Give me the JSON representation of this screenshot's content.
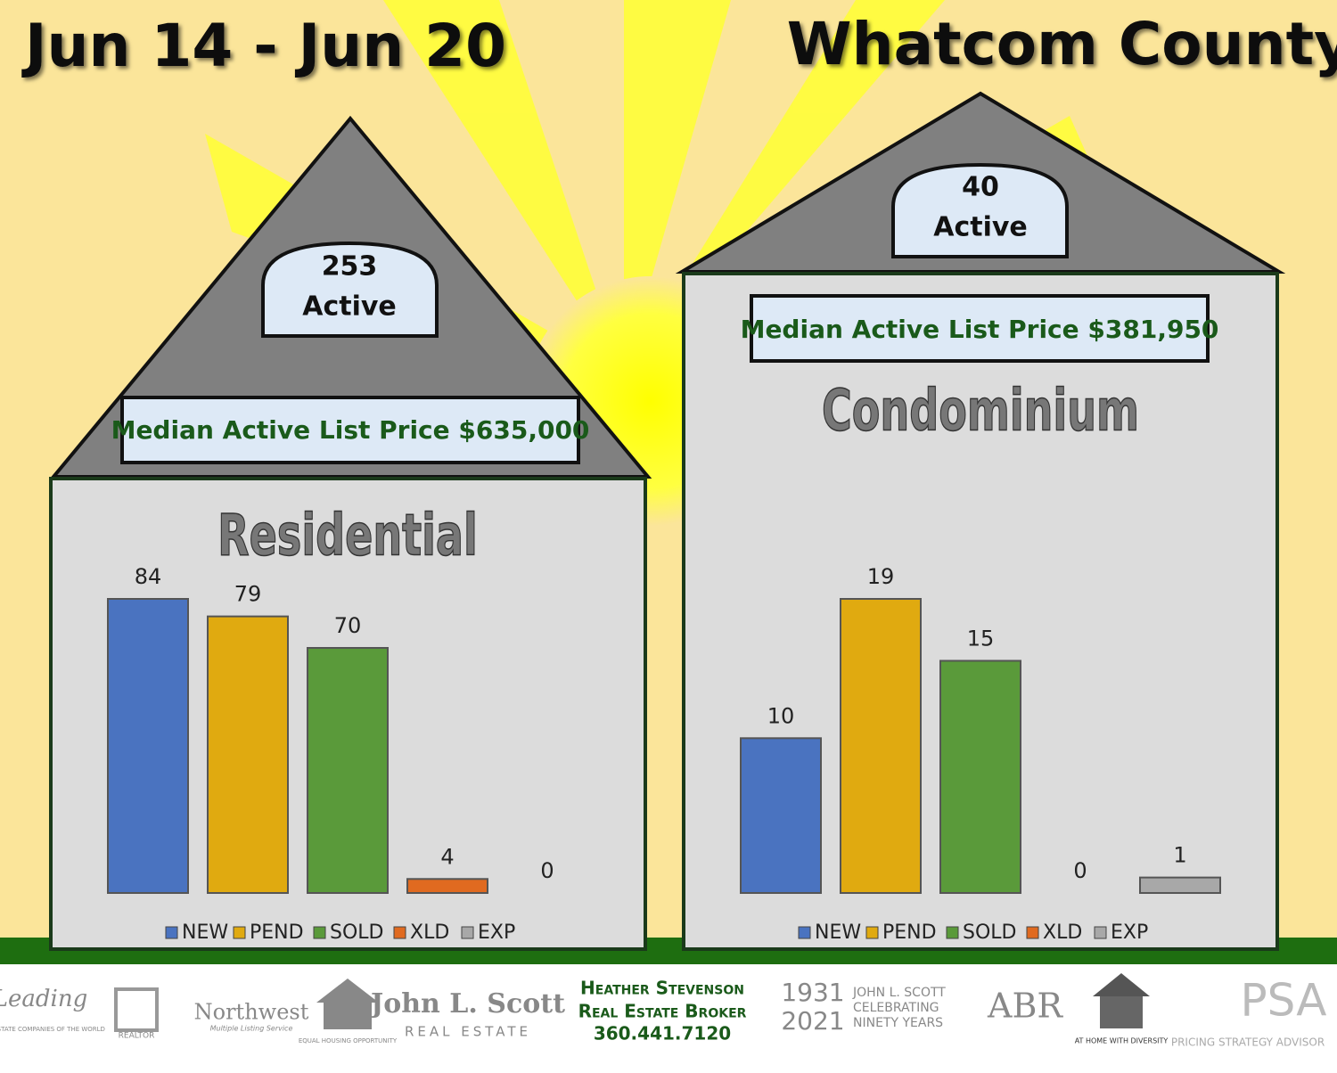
{
  "header": {
    "date_range": "Jun 14 - Jun 20",
    "region": "Whatcom County"
  },
  "houses": [
    {
      "active_count": 253,
      "active_label": "Active",
      "median_price": "Median Active List Price $635,000"
    },
    {
      "active_count": 40,
      "active_label": "Active",
      "median_price": "Median Active List Price $381,950"
    }
  ],
  "chart_data": [
    {
      "type": "bar",
      "title": "Residential",
      "categories": [
        "NEW",
        "PEND",
        "SOLD",
        "XLD",
        "EXP"
      ],
      "values": [
        84,
        79,
        70,
        4,
        0
      ],
      "colors": [
        "#4a73c0",
        "#e0aa10",
        "#5a9a3a",
        "#e06a20",
        "#a8a8a8"
      ]
    },
    {
      "type": "bar",
      "title": "Condominium",
      "categories": [
        "NEW",
        "PEND",
        "SOLD",
        "XLD",
        "EXP"
      ],
      "values": [
        10,
        19,
        15,
        0,
        1
      ],
      "colors": [
        "#4a73c0",
        "#e0aa10",
        "#5a9a3a",
        "#e06a20",
        "#a8a8a8"
      ]
    }
  ],
  "footer": {
    "agent_name": "Heather Stevenson",
    "agent_title": "Real Estate Broker",
    "phone": "360.441.7120",
    "logos": [
      "Leading",
      "REAL ESTATE COMPANIES OF THE WORLD",
      "REALTOR",
      "Northwest",
      "Multiple Listing Service",
      "EQUAL HOUSING OPPORTUNITY",
      "John L. Scott",
      "REAL ESTATE",
      "1931",
      "2021",
      "JOHN L. SCOTT",
      "CELEBRATING",
      "NINETY YEARS",
      "ABR",
      "AT HOME WITH DIVERSITY",
      "PSA",
      "PRICING STRATEGY ADVISOR"
    ]
  }
}
